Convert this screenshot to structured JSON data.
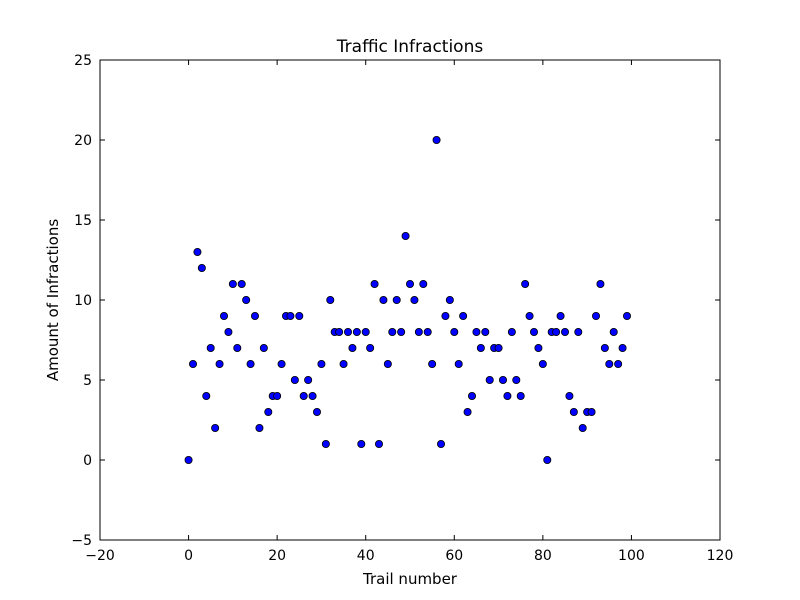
{
  "chart_data": {
    "type": "scatter",
    "title": "Traffic Infractions",
    "xlabel": "Trail number",
    "ylabel": "Amount of Infractions",
    "xlim": [
      -20,
      120
    ],
    "ylim": [
      -5,
      25
    ],
    "xticks": [
      -20,
      0,
      20,
      40,
      60,
      80,
      100,
      120
    ],
    "yticks": [
      -5,
      0,
      5,
      10,
      15,
      20,
      25
    ],
    "xtick_labels": [
      "−20",
      "0",
      "20",
      "40",
      "60",
      "80",
      "100",
      "120"
    ],
    "ytick_labels": [
      "−5",
      "0",
      "5",
      "10",
      "15",
      "20",
      "25"
    ],
    "grid": false,
    "marker_color": "#0000ff",
    "marker_edge_color": "#000000",
    "series": [
      {
        "x": [
          0,
          1,
          2,
          3,
          4,
          5,
          6,
          7,
          8,
          9,
          10,
          11,
          12,
          13,
          14,
          15,
          16,
          17,
          18,
          19,
          20,
          21,
          22,
          23,
          24,
          25,
          26,
          27,
          28,
          29,
          30,
          31,
          32,
          33,
          34,
          35,
          36,
          37,
          38,
          39,
          40,
          41,
          42,
          43,
          44,
          45,
          46,
          47,
          48,
          49,
          50,
          51,
          52,
          53,
          54,
          55,
          56,
          57,
          58,
          59,
          60,
          61,
          62,
          63,
          64,
          65,
          66,
          67,
          68,
          69,
          70,
          71,
          72,
          73,
          74,
          75,
          76,
          77,
          78,
          79,
          80,
          81,
          82,
          83,
          84,
          85,
          86,
          87,
          88,
          89,
          90,
          91,
          92,
          93,
          94,
          95,
          96,
          97,
          98,
          99
        ],
        "y": [
          0,
          6,
          13,
          12,
          4,
          7,
          2,
          6,
          9,
          8,
          11,
          7,
          11,
          10,
          6,
          9,
          2,
          7,
          3,
          4,
          4,
          6,
          9,
          9,
          5,
          9,
          4,
          5,
          4,
          3,
          6,
          1,
          10,
          8,
          8,
          6,
          8,
          7,
          8,
          1,
          8,
          7,
          11,
          1,
          10,
          6,
          8,
          10,
          8,
          14,
          11,
          10,
          8,
          11,
          8,
          6,
          20,
          1,
          9,
          10,
          8,
          6,
          9,
          3,
          4,
          8,
          7,
          8,
          5,
          7,
          7,
          5,
          4,
          8,
          5,
          4,
          11,
          9,
          8,
          7,
          6,
          0,
          8,
          8,
          9,
          8,
          4,
          3,
          8,
          2,
          3,
          3,
          9,
          11,
          7,
          6,
          8,
          6,
          7,
          9
        ]
      }
    ]
  }
}
